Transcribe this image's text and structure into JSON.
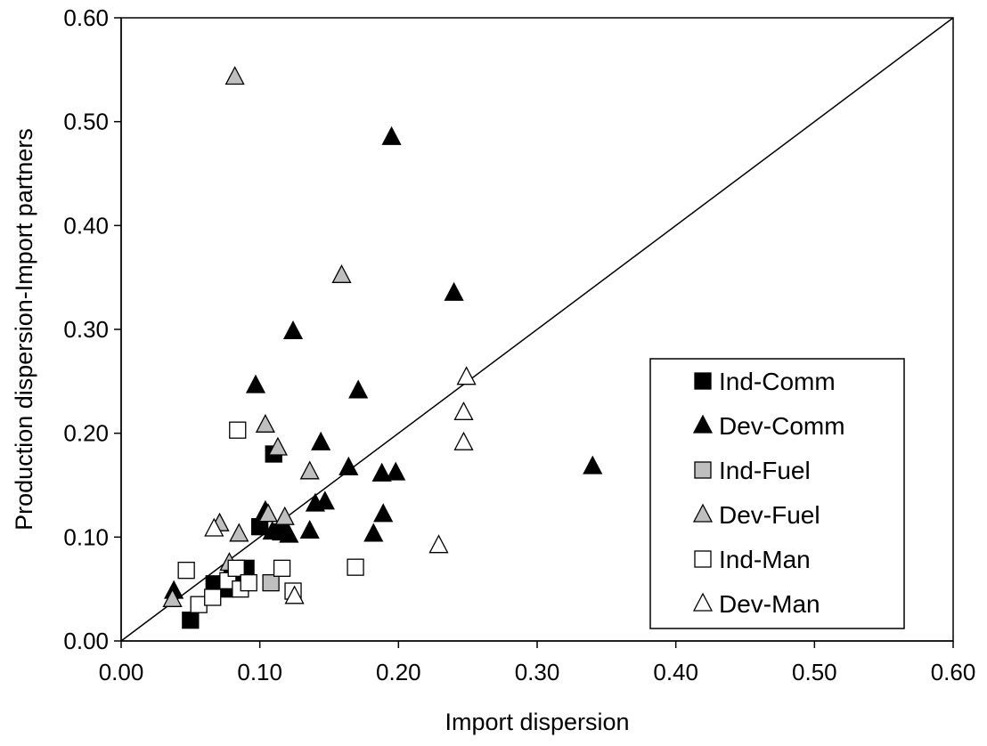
{
  "chart_data": {
    "type": "scatter",
    "xlabel": "Import dispersion",
    "ylabel": "Production dispersion-Import partners",
    "xlim": [
      0,
      0.6
    ],
    "ylim": [
      0,
      0.6
    ],
    "x_ticks": [
      "0.00",
      "0.10",
      "0.20",
      "0.30",
      "0.40",
      "0.50",
      "0.60"
    ],
    "y_ticks": [
      "0.00",
      "0.10",
      "0.20",
      "0.30",
      "0.40",
      "0.50",
      "0.60"
    ],
    "grid": false,
    "legend_position": "lower-right",
    "reference_line": {
      "from": [
        0,
        0
      ],
      "to": [
        0.6,
        0.6
      ]
    },
    "series": [
      {
        "name": "Ind-Comm",
        "marker": "square",
        "fill": "#000000",
        "points": [
          [
            0.05,
            0.02
          ],
          [
            0.067,
            0.055
          ],
          [
            0.075,
            0.05
          ],
          [
            0.08,
            0.06
          ],
          [
            0.09,
            0.07
          ],
          [
            0.1,
            0.11
          ],
          [
            0.11,
            0.18
          ],
          [
            0.115,
            0.105
          ]
        ]
      },
      {
        "name": "Dev-Comm",
        "marker": "triangle",
        "fill": "#000000",
        "points": [
          [
            0.195,
            0.485
          ],
          [
            0.24,
            0.335
          ],
          [
            0.124,
            0.298
          ],
          [
            0.097,
            0.246
          ],
          [
            0.171,
            0.241
          ],
          [
            0.144,
            0.191
          ],
          [
            0.164,
            0.167
          ],
          [
            0.188,
            0.161
          ],
          [
            0.198,
            0.162
          ],
          [
            0.14,
            0.132
          ],
          [
            0.147,
            0.134
          ],
          [
            0.104,
            0.125
          ],
          [
            0.109,
            0.105
          ],
          [
            0.121,
            0.102
          ],
          [
            0.136,
            0.106
          ],
          [
            0.189,
            0.122
          ],
          [
            0.182,
            0.103
          ],
          [
            0.038,
            0.048
          ],
          [
            0.34,
            0.168
          ]
        ]
      },
      {
        "name": "Ind-Fuel",
        "marker": "square",
        "fill": "#bfbfbf",
        "points": [
          [
            0.108,
            0.056
          ]
        ]
      },
      {
        "name": "Dev-Fuel",
        "marker": "triangle",
        "fill": "#bfbfbf",
        "points": [
          [
            0.082,
            0.543
          ],
          [
            0.159,
            0.352
          ],
          [
            0.104,
            0.208
          ],
          [
            0.113,
            0.186
          ],
          [
            0.136,
            0.163
          ],
          [
            0.071,
            0.113
          ],
          [
            0.106,
            0.122
          ],
          [
            0.118,
            0.119
          ],
          [
            0.085,
            0.103
          ],
          [
            0.078,
            0.075
          ],
          [
            0.037,
            0.04
          ]
        ]
      },
      {
        "name": "Ind-Man",
        "marker": "square",
        "fill": "#ffffff",
        "points": [
          [
            0.084,
            0.203
          ],
          [
            0.047,
            0.068
          ],
          [
            0.056,
            0.035
          ],
          [
            0.066,
            0.042
          ],
          [
            0.077,
            0.058
          ],
          [
            0.083,
            0.07
          ],
          [
            0.086,
            0.05
          ],
          [
            0.092,
            0.056
          ],
          [
            0.116,
            0.07
          ],
          [
            0.124,
            0.048
          ],
          [
            0.169,
            0.071
          ]
        ]
      },
      {
        "name": "Dev-Man",
        "marker": "triangle",
        "fill": "#ffffff",
        "points": [
          [
            0.249,
            0.254
          ],
          [
            0.247,
            0.22
          ],
          [
            0.247,
            0.191
          ],
          [
            0.229,
            0.092
          ],
          [
            0.125,
            0.043
          ],
          [
            0.067,
            0.108
          ]
        ]
      }
    ]
  }
}
